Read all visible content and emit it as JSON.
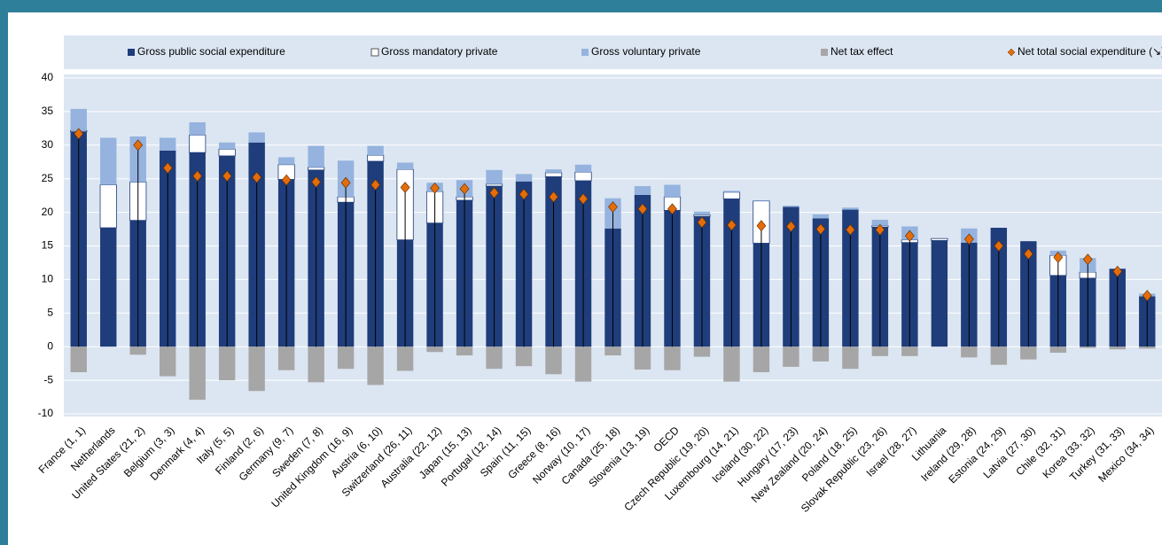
{
  "chart_data": {
    "type": "bar",
    "categories": [
      "France (1, 1)",
      "Netherlands",
      "United States (21, 2)",
      "Belgium (3, 3)",
      "Denmark (4, 4)",
      "Italy (5, 5)",
      "Finland (2, 6)",
      "Germany (9, 7)",
      "Sweden (7, 8)",
      "United Kingdom (16, 9)",
      "Austria (6, 10)",
      "Switzerland (26, 11)",
      "Australia (22, 12)",
      "Japan (15, 13)",
      "Portugal (12, 14)",
      "Spain (11, 15)",
      "Greece (8, 16)",
      "Norway (10, 17)",
      "Canada (25, 18)",
      "Slovenia (13, 19)",
      "OECD",
      "Czech Republic (19, 20)",
      "Luxembourg (14, 21)",
      "Iceland (30, 22)",
      "Hungary (17, 23)",
      "New Zealand (20, 24)",
      "Poland (18, 25)",
      "Slovak Republic (23, 26)",
      "Israel (28, 27)",
      "Lithuania",
      "Ireland (29, 28)",
      "Estonia (24, 29)",
      "Latvia (27, 30)",
      "Chile (32, 31)",
      "Korea (33, 32)",
      "Turkey (31, 33)",
      "Mexico (34, 34)"
    ],
    "series": [
      {
        "name": "Gross public social expenditure",
        "color": "#1f3d7a",
        "values": [
          32.0,
          17.7,
          18.8,
          29.2,
          28.9,
          28.4,
          30.4,
          24.9,
          26.3,
          21.5,
          27.6,
          15.9,
          18.4,
          21.8,
          23.9,
          24.6,
          25.3,
          24.7,
          17.6,
          22.6,
          20.3,
          19.4,
          22.0,
          15.4,
          20.8,
          19.1,
          20.4,
          17.8,
          15.5,
          15.8,
          15.5,
          17.7,
          15.7,
          10.6,
          10.2,
          11.6,
          7.5
        ]
      },
      {
        "name": "Gross mandatory private",
        "color": "#ffffff",
        "values": [
          0.2,
          6.4,
          5.7,
          0,
          2.6,
          1.0,
          0,
          2.2,
          0.4,
          0.8,
          0.9,
          10.5,
          4.7,
          0.5,
          0.3,
          0,
          0.6,
          1.3,
          0,
          0,
          2.0,
          0.2,
          1.0,
          6.3,
          0,
          0,
          0,
          0.2,
          0.4,
          0.3,
          0,
          0,
          0,
          3.0,
          0.9,
          0,
          0
        ]
      },
      {
        "name": "Gross voluntary private",
        "color": "#95b3de",
        "values": [
          3.2,
          7.0,
          6.8,
          1.9,
          1.9,
          1.0,
          1.5,
          1.1,
          3.2,
          5.4,
          1.4,
          1.0,
          1.3,
          2.5,
          2.1,
          1.1,
          0.5,
          1.1,
          4.5,
          1.3,
          1.8,
          0.5,
          0.2,
          0.1,
          0.2,
          0.6,
          0.3,
          0.9,
          2.0,
          0,
          2.1,
          0,
          0,
          0.7,
          2.1,
          0,
          0.4
        ]
      },
      {
        "name": "Net tax effect",
        "color": "#a6a6a6",
        "values": [
          -3.8,
          0,
          -1.2,
          -4.4,
          -7.9,
          -5.0,
          -6.6,
          -3.5,
          -5.3,
          -3.3,
          -5.7,
          -3.6,
          -0.8,
          -1.3,
          -3.3,
          -2.9,
          -4.1,
          -5.2,
          -1.3,
          -3.4,
          -3.5,
          -1.5,
          -5.2,
          -3.8,
          -3.0,
          -2.2,
          -3.3,
          -1.4,
          -1.4,
          0,
          -1.6,
          -2.7,
          -1.9,
          -0.9,
          -0.2,
          -0.4,
          -0.3
        ]
      },
      {
        "name": "Net total social expenditure (↘)",
        "color": "#e46c0a",
        "marker": "diamond",
        "values": [
          31.7,
          null,
          30.0,
          26.6,
          25.4,
          25.4,
          25.2,
          24.8,
          24.5,
          24.4,
          24.1,
          23.7,
          23.6,
          23.5,
          22.9,
          22.7,
          22.3,
          22.0,
          20.8,
          20.5,
          20.5,
          18.5,
          18.1,
          18.0,
          17.9,
          17.5,
          17.4,
          17.4,
          16.5,
          null,
          16.0,
          15.0,
          13.8,
          13.3,
          13.0,
          11.2,
          7.6
        ]
      }
    ],
    "ylim": [
      -10,
      40
    ],
    "yticks": [
      -10,
      -5,
      0,
      5,
      10,
      15,
      20,
      25,
      30,
      35,
      40
    ],
    "grid": true
  }
}
